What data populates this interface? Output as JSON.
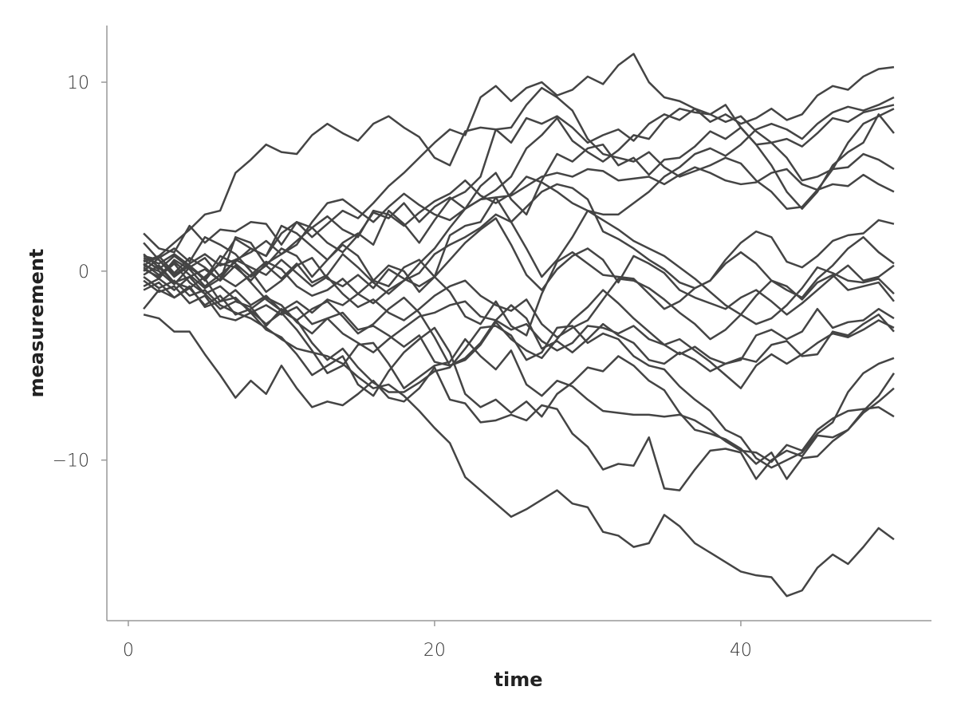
{
  "chart_data": {
    "type": "line",
    "xlabel": "time",
    "ylabel": "measurement",
    "color": "#444444",
    "xlim": [
      -1.4,
      52.45
    ],
    "ylim": [
      -18.5,
      13.0
    ],
    "xticks": [
      0,
      20,
      40
    ],
    "yticks": [
      {
        "value": -10,
        "label": "−10"
      },
      0,
      10
    ],
    "x": [
      1,
      2,
      3,
      4,
      5,
      6,
      7,
      8,
      9,
      10,
      11,
      12,
      13,
      14,
      15,
      16,
      17,
      18,
      19,
      20,
      21,
      22,
      23,
      24,
      25,
      26,
      27,
      28,
      29,
      30,
      31,
      32,
      33,
      34,
      35,
      36,
      37,
      38,
      39,
      40,
      41,
      42,
      43,
      44,
      45,
      46,
      47,
      48,
      49,
      50
    ],
    "series": [
      {
        "values": [
          0.5,
          0.8,
          1.5,
          2.2,
          3.0,
          3.2,
          5.2,
          5.9,
          6.7,
          6.3,
          6.2,
          7.2,
          7.8,
          7.3,
          6.9,
          7.8,
          8.2,
          7.6,
          7.1,
          6.0,
          5.6,
          7.4,
          7.6,
          7.5,
          6.8,
          8.1,
          7.8,
          8.2,
          7.6,
          6.8,
          7.2,
          7.5,
          6.9,
          7.8,
          8.3,
          8.0,
          8.6,
          8.3,
          7.9,
          8.2,
          7.4,
          6.8,
          7.0,
          6.6,
          7.3,
          8.1,
          7.9,
          8.4,
          8.6,
          8.8
        ]
      },
      {
        "values": [
          0.2,
          -0.4,
          0.6,
          0.1,
          -0.8,
          -0.2,
          0.5,
          1.2,
          0.8,
          2.0,
          2.6,
          1.8,
          2.5,
          3.2,
          2.8,
          3.6,
          4.5,
          5.2,
          6.0,
          6.8,
          7.5,
          7.2,
          9.2,
          9.8,
          9.0,
          9.7,
          10.0,
          9.3,
          9.6,
          10.3,
          9.9,
          10.9,
          11.5,
          10.0,
          9.2,
          9.0,
          8.6,
          7.9,
          8.3,
          7.8,
          8.1,
          8.6,
          8.0,
          8.3,
          9.3,
          9.8,
          9.6,
          10.3,
          10.7,
          10.8
        ]
      },
      {
        "values": [
          -0.3,
          -0.9,
          -0.5,
          -1.3,
          -1.0,
          -1.8,
          -2.2,
          -2.5,
          -3.0,
          -3.6,
          -4.1,
          -4.3,
          -4.5,
          -4.9,
          -5.6,
          -6.2,
          -6.0,
          -6.6,
          -7.4,
          -8.3,
          -9.1,
          -10.9,
          -11.6,
          -12.3,
          -13.0,
          -12.6,
          -12.1,
          -11.6,
          -12.3,
          -12.5,
          -13.8,
          -14.0,
          -14.6,
          -14.4,
          -12.9,
          -13.5,
          -14.4,
          -14.9,
          -15.4,
          -15.9,
          -16.1,
          -16.2,
          -17.2,
          -16.9,
          -15.7,
          -15.0,
          -15.5,
          -14.6,
          -13.6,
          -14.2
        ]
      },
      {
        "values": [
          -2.3,
          -2.5,
          -3.2,
          -3.2,
          -4.4,
          -5.5,
          -6.7,
          -5.8,
          -6.5,
          -5.0,
          -6.2,
          -7.2,
          -6.9,
          -7.1,
          -6.5,
          -5.8,
          -6.7,
          -6.9,
          -6.2,
          -5.1,
          -6.8,
          -7.0,
          -8.0,
          -7.9,
          -7.6,
          -7.9,
          -7.1,
          -7.3,
          -8.6,
          -9.3,
          -10.5,
          -10.2,
          -10.3,
          -8.8,
          -11.5,
          -11.6,
          -10.5,
          -9.5,
          -9.4,
          -9.6,
          -11.0,
          -10.0,
          -9.5,
          -9.8,
          -8.7,
          -8.8,
          -8.4,
          -7.5,
          -6.9,
          -6.2
        ]
      },
      {
        "values": [
          0.9,
          0.2,
          -0.6,
          -0.3,
          -1.2,
          -0.8,
          -1.5,
          -2.1,
          -2.8,
          -2.2,
          -3.1,
          -4.2,
          -5.4,
          -5.0,
          -3.9,
          -3.8,
          -4.9,
          -6.2,
          -5.6,
          -5.0,
          -4.8,
          -3.6,
          -4.5,
          -5.2,
          -4.2,
          -6.0,
          -6.6,
          -5.8,
          -6.1,
          -6.8,
          -7.4,
          -7.5,
          -7.6,
          -7.6,
          -7.7,
          -7.6,
          -7.9,
          -8.4,
          -9.0,
          -9.5,
          -9.6,
          -10.1,
          -9.2,
          -9.5,
          -8.4,
          -7.8,
          -7.4,
          -7.3,
          -7.2,
          -7.7
        ]
      },
      {
        "values": [
          -0.5,
          -1.1,
          -0.8,
          -1.7,
          -1.3,
          -2.4,
          -2.6,
          -2.2,
          -3.1,
          -3.5,
          -4.4,
          -5.5,
          -5.0,
          -4.5,
          -6.0,
          -6.6,
          -5.3,
          -4.3,
          -3.6,
          -3.0,
          -4.3,
          -6.5,
          -7.2,
          -6.8,
          -7.5,
          -6.9,
          -7.7,
          -6.5,
          -5.9,
          -5.1,
          -5.3,
          -4.5,
          -5.0,
          -5.8,
          -6.3,
          -7.5,
          -8.4,
          -8.6,
          -8.9,
          -9.4,
          -10.2,
          -9.6,
          -11.0,
          -9.9,
          -9.8,
          -9.0,
          -8.4,
          -7.4,
          -6.6,
          -5.4
        ]
      },
      {
        "values": [
          0.1,
          -0.3,
          0.4,
          -0.6,
          -1.2,
          -2.0,
          -1.6,
          -1.9,
          -2.9,
          -2.0,
          -2.6,
          -3.8,
          -4.7,
          -4.1,
          -5.1,
          -5.9,
          -6.4,
          -6.4,
          -5.9,
          -5.3,
          -5.1,
          -4.1,
          -3.0,
          -2.9,
          -3.4,
          -4.7,
          -4.3,
          -3.0,
          -2.9,
          -3.8,
          -3.3,
          -3.6,
          -4.5,
          -5.0,
          -5.2,
          -6.1,
          -6.8,
          -7.4,
          -8.4,
          -8.8,
          -9.9,
          -10.4,
          -10.0,
          -9.6,
          -8.6,
          -8.0,
          -6.4,
          -5.4,
          -4.9,
          -4.6
        ]
      },
      {
        "values": [
          0.3,
          0.0,
          -0.7,
          0.2,
          -0.4,
          -1.6,
          -1.4,
          -2.2,
          -1.8,
          -2.3,
          -1.9,
          -2.8,
          -2.5,
          -3.3,
          -3.8,
          -4.3,
          -3.6,
          -3.0,
          -2.4,
          -2.2,
          -1.8,
          -1.6,
          -2.4,
          -2.6,
          -3.1,
          -2.8,
          -3.7,
          -4.2,
          -3.8,
          -2.9,
          -3.0,
          -3.3,
          -2.9,
          -3.6,
          -3.9,
          -4.4,
          -4.0,
          -4.6,
          -4.9,
          -4.6,
          -4.8,
          -3.9,
          -3.7,
          -4.5,
          -4.4,
          -3.2,
          -3.4,
          -2.8,
          -2.3,
          -3.2
        ]
      },
      {
        "values": [
          -2.0,
          -1.0,
          -1.4,
          -0.9,
          -1.8,
          -1.3,
          -2.3,
          -2.0,
          -1.4,
          -1.8,
          -2.7,
          -3.3,
          -2.5,
          -2.2,
          -3.1,
          -2.9,
          -3.4,
          -4.0,
          -3.4,
          -4.8,
          -5.0,
          -4.6,
          -3.8,
          -2.6,
          -1.8,
          -2.5,
          -4.1,
          -3.7,
          -4.3,
          -3.6,
          -2.8,
          -3.4,
          -3.8,
          -4.7,
          -4.9,
          -4.3,
          -4.7,
          -5.3,
          -4.9,
          -4.7,
          -3.4,
          -3.1,
          -3.6,
          -3.2,
          -2.0,
          -3.0,
          -2.7,
          -2.6,
          -2.0,
          -2.5
        ]
      },
      {
        "values": [
          0.8,
          0.6,
          -0.2,
          0.4,
          0.9,
          0.3,
          0.6,
          0.2,
          -0.2,
          0.6,
          -0.1,
          -0.8,
          -0.3,
          -1.2,
          -1.9,
          -1.5,
          -2.2,
          -2.6,
          -2.0,
          -1.3,
          -0.8,
          -0.5,
          -1.3,
          -1.8,
          -2.1,
          -1.5,
          -2.8,
          -3.5,
          -3.0,
          -2.6,
          -1.5,
          -0.4,
          -0.5,
          -0.9,
          -1.5,
          -2.2,
          -2.8,
          -3.6,
          -3.1,
          -2.3,
          -1.3,
          -0.5,
          -0.8,
          -1.5,
          -0.6,
          -0.2,
          -1.0,
          -0.8,
          -0.6,
          -1.6
        ]
      },
      {
        "values": [
          1.5,
          0.6,
          -0.3,
          0.3,
          -0.5,
          0.5,
          1.7,
          1.2,
          0.8,
          2.4,
          2.0,
          1.3,
          0.6,
          1.4,
          0.8,
          -0.5,
          -0.8,
          0.2,
          0.6,
          -0.3,
          -1.1,
          -2.4,
          -2.8,
          -1.6,
          -2.9,
          -3.4,
          -1.2,
          0.5,
          1.0,
          0.4,
          -0.2,
          -0.3,
          -0.4,
          -1.2,
          -2.0,
          -1.6,
          -0.9,
          -0.5,
          0.4,
          1.0,
          0.4,
          -0.5,
          -1.0,
          -1.4,
          -0.4,
          0.3,
          1.2,
          1.8,
          1.0,
          0.4
        ]
      },
      {
        "values": [
          0.0,
          0.7,
          1.2,
          0.5,
          1.8,
          1.4,
          0.9,
          0.0,
          -1.1,
          -0.5,
          0.3,
          0.7,
          -0.4,
          -0.8,
          -0.2,
          -0.9,
          0.1,
          -0.4,
          -0.8,
          -0.3,
          0.6,
          1.5,
          2.2,
          2.8,
          1.4,
          -0.2,
          -1.0,
          0.1,
          0.8,
          1.2,
          0.6,
          -0.6,
          0.8,
          0.4,
          -0.1,
          -1.0,
          -1.4,
          -1.7,
          -2.0,
          -1.4,
          -1.0,
          -1.6,
          -2.3,
          -1.7,
          -1.0,
          -0.3,
          0.3,
          -0.5,
          -0.3,
          0.3
        ]
      },
      {
        "values": [
          0.7,
          0.4,
          0.9,
          0.3,
          -0.4,
          0.8,
          0.4,
          -0.3,
          0.3,
          -0.4,
          0.4,
          -0.6,
          -0.2,
          0.9,
          0.2,
          -0.6,
          -1.2,
          -0.5,
          -0.1,
          0.9,
          1.4,
          1.8,
          2.3,
          3.0,
          2.6,
          3.4,
          4.2,
          4.6,
          4.4,
          3.8,
          2.1,
          1.7,
          1.2,
          0.6,
          0.1,
          -0.6,
          -0.9,
          -0.5,
          0.6,
          1.5,
          2.1,
          1.8,
          0.5,
          0.2,
          0.8,
          1.6,
          1.9,
          2.0,
          2.7,
          2.5
        ]
      },
      {
        "values": [
          0.4,
          -0.2,
          0.5,
          -0.2,
          -0.9,
          -0.4,
          0.6,
          1.0,
          1.6,
          0.9,
          1.4,
          2.6,
          3.6,
          3.8,
          3.2,
          2.6,
          3.4,
          4.1,
          3.5,
          3.0,
          2.7,
          3.3,
          3.8,
          3.9,
          4.0,
          4.5,
          5.0,
          5.2,
          5.0,
          5.4,
          5.3,
          4.8,
          4.9,
          5.0,
          4.6,
          5.1,
          5.5,
          5.2,
          4.8,
          4.6,
          4.7,
          5.2,
          5.4,
          4.6,
          4.3,
          4.6,
          4.5,
          5.1,
          4.6,
          4.2
        ]
      },
      {
        "values": [
          -0.2,
          0.3,
          -0.6,
          -0.9,
          -0.3,
          0.4,
          0.2,
          -0.5,
          0.4,
          0.9,
          1.6,
          2.3,
          1.5,
          1.0,
          1.9,
          3.1,
          2.8,
          3.6,
          2.6,
          3.4,
          3.9,
          3.3,
          4.5,
          5.2,
          3.8,
          3.0,
          4.8,
          6.2,
          5.8,
          6.5,
          6.7,
          5.6,
          6.0,
          5.1,
          5.9,
          6.0,
          6.6,
          7.4,
          7.0,
          7.6,
          6.7,
          6.8,
          6.0,
          4.8,
          5.0,
          5.4,
          5.5,
          6.2,
          5.9,
          5.4
        ]
      },
      {
        "values": [
          0.6,
          0.1,
          0.8,
          0.2,
          0.7,
          -0.3,
          -0.8,
          -0.2,
          0.5,
          0.1,
          -0.8,
          -1.3,
          -1.0,
          -0.4,
          -1.2,
          -1.7,
          -1.0,
          -0.5,
          0.4,
          1.2,
          2.3,
          3.3,
          3.8,
          4.3,
          5.0,
          6.5,
          7.2,
          8.1,
          6.9,
          6.3,
          5.8,
          6.4,
          7.2,
          7.0,
          8.0,
          8.6,
          8.4,
          8.3,
          8.8,
          7.6,
          6.7,
          5.6,
          4.2,
          3.3,
          4.2,
          5.6,
          6.3,
          6.8,
          8.3,
          7.3
        ]
      },
      {
        "values": [
          -0.8,
          -0.4,
          -1.0,
          -0.3,
          0.1,
          -0.5,
          1.8,
          1.5,
          0.3,
          1.2,
          0.8,
          -0.3,
          0.6,
          1.5,
          2.0,
          1.4,
          3.2,
          2.5,
          1.5,
          2.7,
          3.8,
          4.2,
          5.0,
          7.5,
          7.6,
          8.8,
          9.7,
          9.2,
          8.5,
          7.0,
          6.2,
          6.0,
          5.8,
          6.3,
          5.5,
          5.0,
          5.3,
          5.6,
          6.0,
          5.7,
          4.8,
          4.2,
          3.3,
          3.4,
          4.3,
          5.4,
          6.8,
          7.8,
          8.2,
          8.6
        ]
      },
      {
        "values": [
          0.3,
          0.8,
          -0.1,
          0.7,
          0.2,
          -0.5,
          0.3,
          -0.6,
          -1.5,
          -2.1,
          -1.6,
          -2.2,
          -1.5,
          -1.8,
          -1.2,
          -0.5,
          0.3,
          0.0,
          -1.1,
          -0.3,
          1.9,
          2.4,
          2.6,
          3.9,
          2.6,
          1.2,
          -0.3,
          0.6,
          1.8,
          3.2,
          3.0,
          3.0,
          3.6,
          4.2,
          5.0,
          5.5,
          6.2,
          6.5,
          6.1,
          6.7,
          7.5,
          7.8,
          7.5,
          7.0,
          7.8,
          8.4,
          8.7,
          8.5,
          8.8,
          9.2
        ]
      },
      {
        "values": [
          2.0,
          1.2,
          1.0,
          2.4,
          1.5,
          2.2,
          2.1,
          2.6,
          2.5,
          1.4,
          2.6,
          2.3,
          2.9,
          2.2,
          1.8,
          3.2,
          3.0,
          2.4,
          3.1,
          3.7,
          4.1,
          4.8,
          4.0,
          3.6,
          4.1,
          5.0,
          4.7,
          4.2,
          3.6,
          3.2,
          2.7,
          2.2,
          1.6,
          1.2,
          0.8,
          0.2,
          -0.4,
          -1.1,
          -1.8,
          -2.3,
          -2.8,
          -2.5,
          -1.8,
          -0.9,
          0.2,
          -0.1,
          -0.5,
          -0.6,
          -0.4,
          -1.2
        ]
      },
      {
        "values": [
          -1.0,
          -0.6,
          -1.4,
          -0.8,
          -1.9,
          -1.6,
          -1.0,
          -1.8,
          -1.3,
          -2.1,
          -2.6,
          -2.0,
          -1.6,
          -2.4,
          -3.3,
          -2.8,
          -2.0,
          -1.4,
          -2.2,
          -3.5,
          -5.0,
          -4.7,
          -3.9,
          -2.7,
          -3.6,
          -4.2,
          -4.6,
          -3.6,
          -2.6,
          -1.9,
          -1.0,
          -1.7,
          -2.5,
          -3.2,
          -3.9,
          -3.6,
          -4.2,
          -4.8,
          -5.5,
          -6.2,
          -5.0,
          -4.4,
          -4.9,
          -4.4,
          -3.8,
          -3.3,
          -3.5,
          -3.1,
          -2.6,
          -3.0
        ]
      }
    ]
  }
}
